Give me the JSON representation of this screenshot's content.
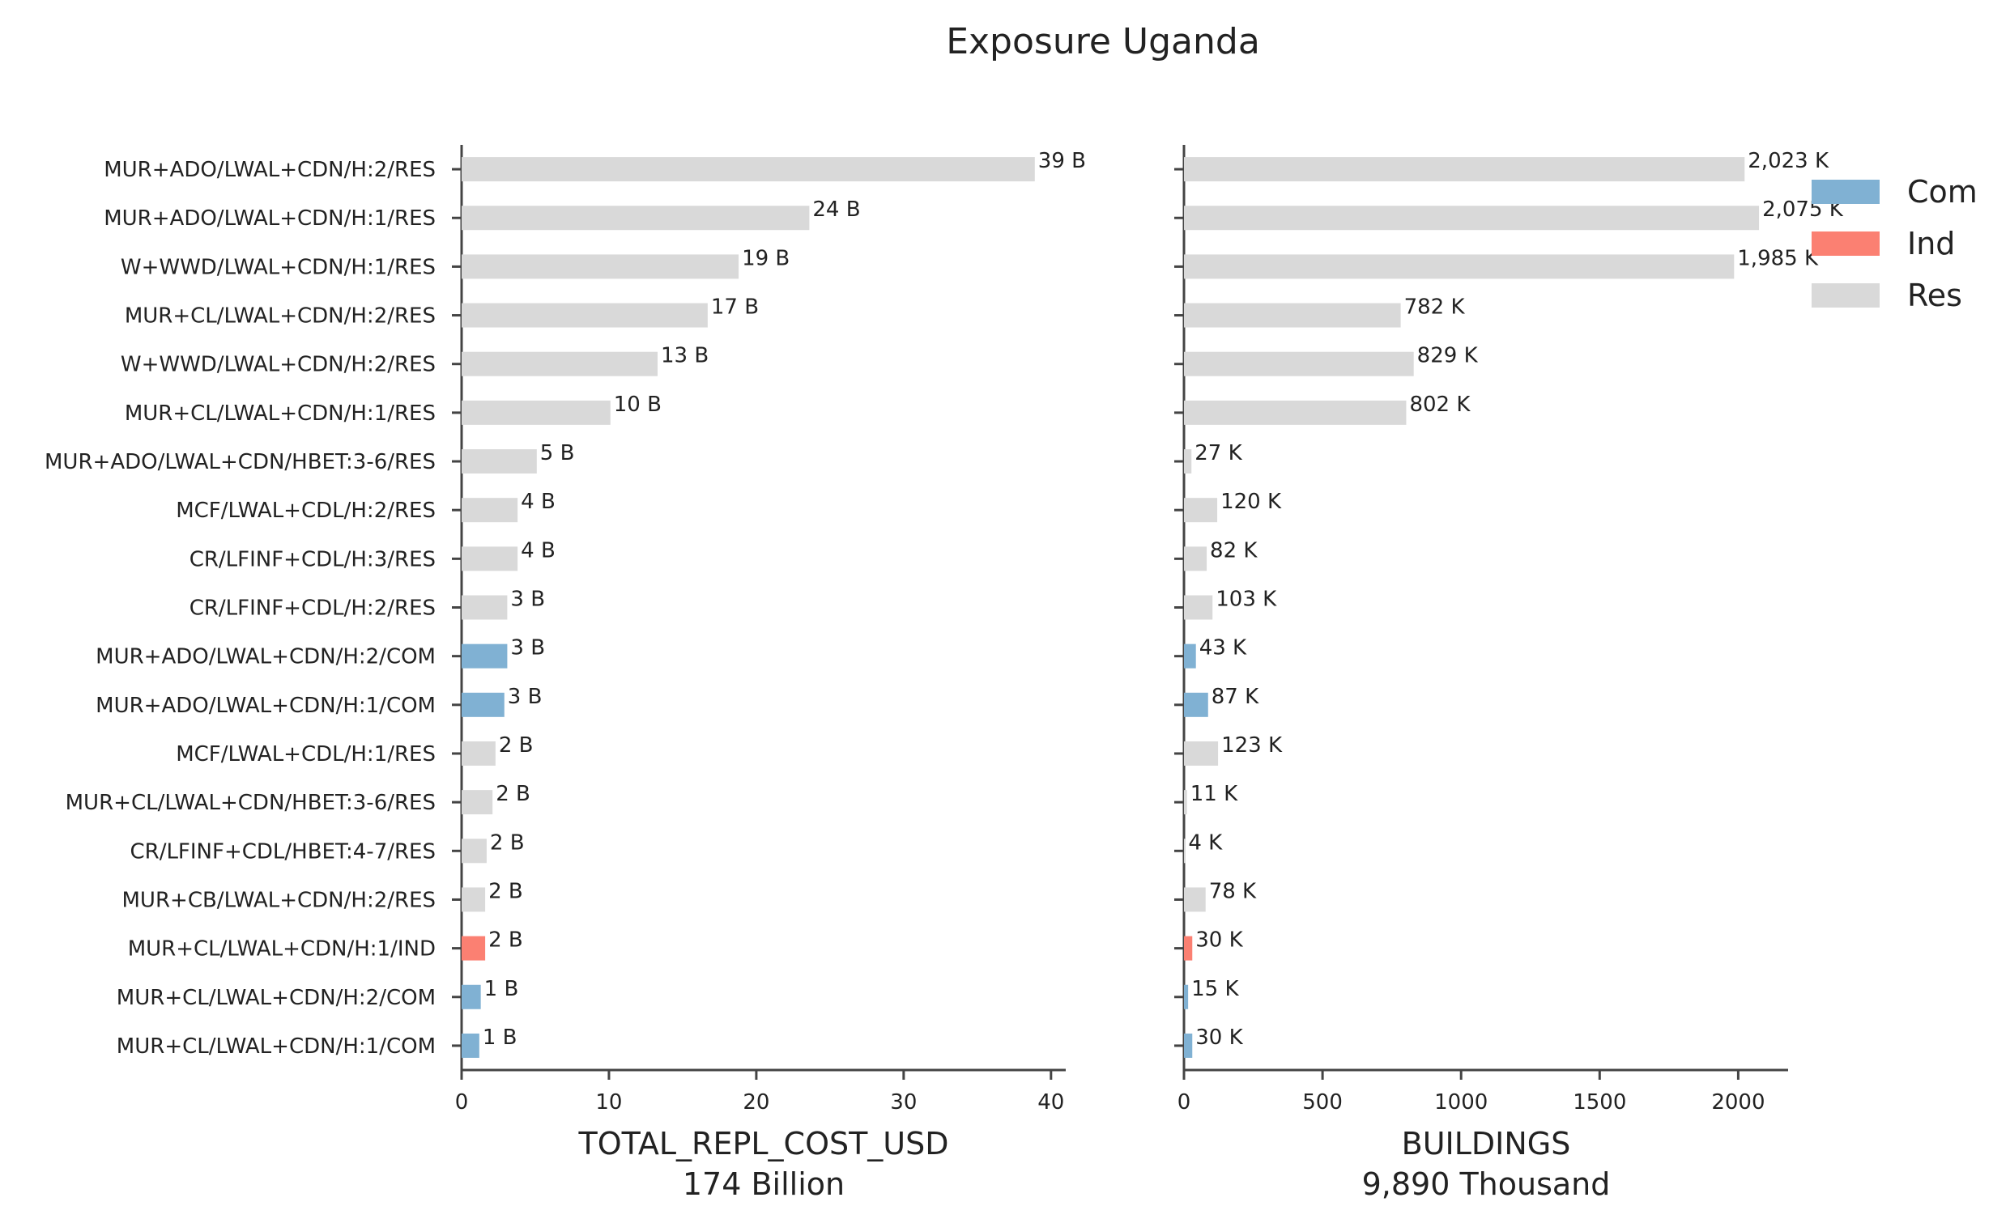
{
  "figure_title": "Exposure Uganda",
  "chart_data": [
    {
      "type": "bar",
      "orientation": "horizontal",
      "title": "",
      "xlabel": "TOTAL_REPL_COST_USD",
      "subtitle": "174 Billion",
      "ylabel": "",
      "xlim": [
        0,
        41
      ],
      "xticks": [
        0,
        10,
        20,
        30,
        40
      ],
      "xtick_labels": [
        "0",
        "10",
        "20",
        "30",
        "40"
      ],
      "categories": [
        "MUR+ADO/LWAL+CDN/H:2/RES",
        "MUR+ADO/LWAL+CDN/H:1/RES",
        "W+WWD/LWAL+CDN/H:1/RES",
        "MUR+CL/LWAL+CDN/H:2/RES",
        "W+WWD/LWAL+CDN/H:2/RES",
        "MUR+CL/LWAL+CDN/H:1/RES",
        "MUR+ADO/LWAL+CDN/HBET:3-6/RES",
        "MCF/LWAL+CDL/H:2/RES",
        "CR/LFINF+CDL/H:3/RES",
        "CR/LFINF+CDL/H:2/RES",
        "MUR+ADO/LWAL+CDN/H:2/COM",
        "MUR+ADO/LWAL+CDN/H:1/COM",
        "MCF/LWAL+CDL/H:1/RES",
        "MUR+CL/LWAL+CDN/HBET:3-6/RES",
        "CR/LFINF+CDL/HBET:4-7/RES",
        "MUR+CB/LWAL+CDN/H:2/RES",
        "MUR+CL/LWAL+CDN/H:1/IND",
        "MUR+CL/LWAL+CDN/H:2/COM",
        "MUR+CL/LWAL+CDN/H:1/COM"
      ],
      "occupancy": [
        "Res",
        "Res",
        "Res",
        "Res",
        "Res",
        "Res",
        "Res",
        "Res",
        "Res",
        "Res",
        "Com",
        "Com",
        "Res",
        "Res",
        "Res",
        "Res",
        "Ind",
        "Com",
        "Com"
      ],
      "values": [
        38.9,
        23.6,
        18.8,
        16.7,
        13.3,
        10.1,
        5.1,
        3.8,
        3.8,
        3.1,
        3.1,
        2.9,
        2.3,
        2.1,
        1.7,
        1.6,
        1.6,
        1.3,
        1.2
      ],
      "data_labels": [
        "39 B",
        "24 B",
        "19 B",
        "17 B",
        "13 B",
        "10 B",
        "5 B",
        "4 B",
        "4 B",
        "3 B",
        "3 B",
        "3 B",
        "2 B",
        "2 B",
        "2 B",
        "2 B",
        "2 B",
        "1 B",
        "1 B"
      ]
    },
    {
      "type": "bar",
      "orientation": "horizontal",
      "title": "",
      "xlabel": "BUILDINGS",
      "subtitle": "9,890 Thousand",
      "ylabel": "",
      "xlim": [
        0,
        2180
      ],
      "xticks": [
        0,
        500,
        1000,
        1500,
        2000
      ],
      "xtick_labels": [
        "0",
        "500",
        "1000",
        "1500",
        "2000"
      ],
      "occupancy": [
        "Res",
        "Res",
        "Res",
        "Res",
        "Res",
        "Res",
        "Res",
        "Res",
        "Res",
        "Res",
        "Com",
        "Com",
        "Res",
        "Res",
        "Res",
        "Res",
        "Ind",
        "Com",
        "Com"
      ],
      "values": [
        2023,
        2075,
        1985,
        782,
        829,
        802,
        27,
        120,
        82,
        103,
        43,
        87,
        123,
        11,
        4,
        78,
        30,
        15,
        30
      ],
      "data_labels": [
        "2,023 K",
        "2,075 K",
        "1,985 K",
        "782 K",
        "829 K",
        "802 K",
        "27 K",
        "120 K",
        "82 K",
        "103 K",
        "43 K",
        "87 K",
        "123 K",
        "11 K",
        "4 K",
        "78 K",
        "30 K",
        "15 K",
        "30 K"
      ]
    }
  ],
  "legend": {
    "placement": "top-right",
    "items": [
      {
        "label": "Com",
        "color": "#80b1d3"
      },
      {
        "label": "Ind",
        "color": "#fb8072"
      },
      {
        "label": "Res",
        "color": "#d9d9d9"
      }
    ]
  },
  "colors": {
    "Com": "#80b1d3",
    "Ind": "#fb8072",
    "Res": "#d9d9d9",
    "axis": "#444444"
  }
}
